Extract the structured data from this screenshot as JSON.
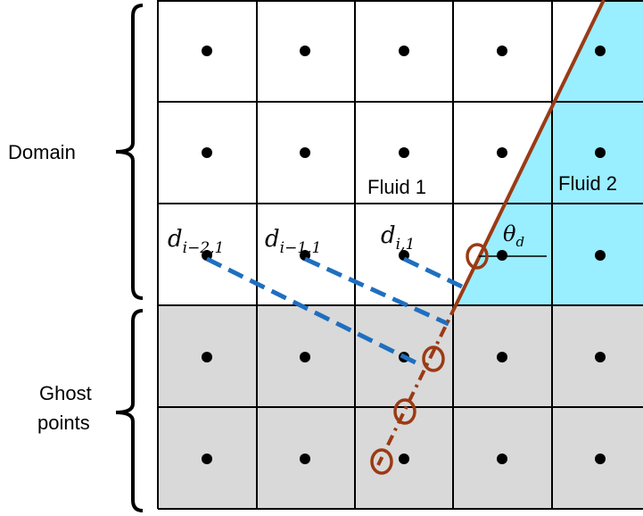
{
  "labels": {
    "domain": "Domain",
    "ghost_line1": "Ghost",
    "ghost_line2": "points",
    "fluid1": "Fluid 1",
    "fluid2": "Fluid 2"
  },
  "math": {
    "d_base": "d",
    "d1_sub": "i−2,1",
    "d2_sub": "i−1,1",
    "d3_sub": "i,1",
    "theta_base": "θ",
    "theta_sub": "d"
  },
  "colors": {
    "fluid2_fill": "#99EEFF",
    "ghost_fill": "#D9D9D9",
    "interface_line": "#9B3A14",
    "distance_dash": "#1F6FBF",
    "grid_line": "#000000"
  }
}
